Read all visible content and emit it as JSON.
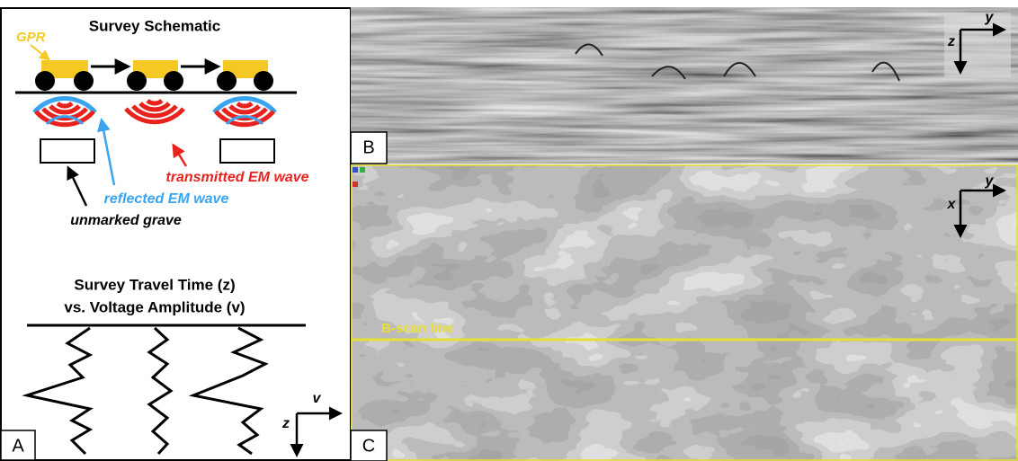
{
  "panel_a": {
    "label": "A",
    "title": "Survey Schematic",
    "gpr_label": "GPR",
    "transmitted_label": "transmitted EM wave",
    "reflected_label": "reflected EM wave",
    "grave_label": "unmarked grave",
    "plot_title_line1": "Survey Travel Time (z)",
    "plot_title_line2": "vs. Voltage Amplitude (v)",
    "axis_v": "v",
    "axis_z": "z"
  },
  "panel_b": {
    "label": "B",
    "axis_y": "y",
    "axis_z": "z"
  },
  "panel_c": {
    "label": "C",
    "axis_y": "y",
    "axis_x": "x",
    "line_label": "B-scan line"
  }
}
